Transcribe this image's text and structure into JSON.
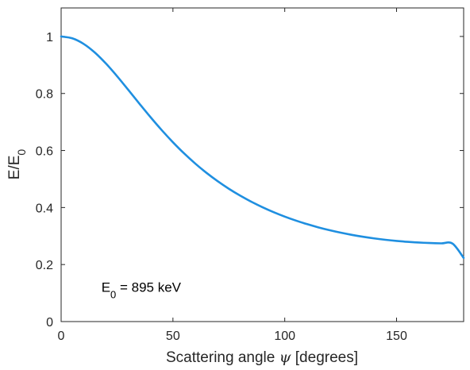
{
  "chart_data": {
    "type": "line",
    "title": "",
    "xlabel": "Scattering angle ψ [degrees]",
    "xlabel_parts": {
      "before": "Scattering angle ",
      "symbol": "ψ",
      "after": " [degrees]"
    },
    "ylabel": "E/E0",
    "ylabel_parts": {
      "main": "E/E",
      "sub": "0"
    },
    "xlim": [
      0,
      180
    ],
    "ylim": [
      0,
      1.1
    ],
    "xticks": [
      0,
      50,
      100,
      150
    ],
    "yticks": [
      0,
      0.2,
      0.4,
      0.6,
      0.8,
      1
    ],
    "xtick_labels": [
      "0",
      "50",
      "100",
      "150"
    ],
    "ytick_labels": [
      "0",
      "0.2",
      "0.4",
      "0.6",
      "0.8",
      "1"
    ],
    "grid": false,
    "line_color": "#1f8fe0",
    "annotation": {
      "main": "E",
      "sub": "0",
      "rest": " = 895 keV",
      "at": [
        18,
        0.105
      ]
    },
    "series": [
      {
        "x": [
          0,
          5,
          10,
          15,
          20,
          25,
          30,
          35,
          40,
          45,
          50,
          55,
          60,
          65,
          70,
          75,
          80,
          85,
          90,
          95,
          100,
          105,
          110,
          115,
          120,
          125,
          130,
          135,
          140,
          145,
          150,
          155,
          160,
          165,
          170,
          175,
          180
        ],
        "values": [
          1,
          0.9934,
          0.9742,
          0.944,
          0.9053,
          0.8607,
          0.8129,
          0.7643,
          0.7167,
          0.6713,
          0.6289,
          0.5897,
          0.554,
          0.5216,
          0.4923,
          0.4658,
          0.442,
          0.4205,
          0.4012,
          0.3838,
          0.3682,
          0.3542,
          0.3417,
          0.3305,
          0.3206,
          0.3118,
          0.3041,
          0.2974,
          0.2917,
          0.2869,
          0.2829,
          0.2797,
          0.2772,
          0.2754,
          0.2743,
          0.2736,
          0.2234
        ]
      }
    ]
  }
}
